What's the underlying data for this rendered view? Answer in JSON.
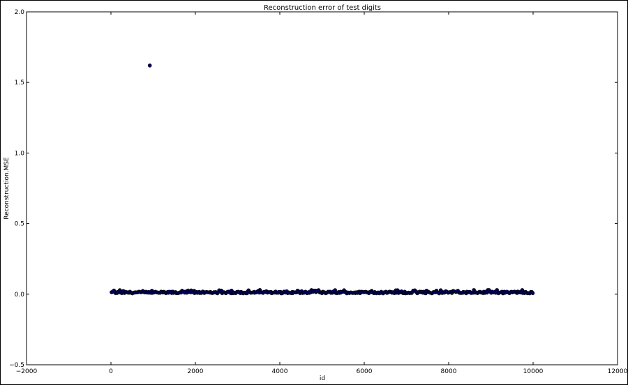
{
  "chart_data": {
    "type": "scatter",
    "title": "Reconstruction error of test digits",
    "xlabel": "id",
    "ylabel": "Reconstruction.MSE",
    "xlim": [
      -2000,
      12000
    ],
    "ylim": [
      -0.5,
      2.0
    ],
    "xticks": [
      -2000,
      0,
      2000,
      4000,
      6000,
      8000,
      10000,
      12000
    ],
    "xtick_labels": [
      "−2000",
      "0",
      "2000",
      "4000",
      "6000",
      "8000",
      "10000",
      "12000"
    ],
    "yticks": [
      -0.5,
      0.0,
      0.5,
      1.0,
      1.5,
      2.0
    ],
    "ytick_labels": [
      "−0.5",
      "0.0",
      "0.5",
      "1.0",
      "1.5",
      "2.0"
    ],
    "grid": false,
    "legend": "none",
    "marker_color": "#000066",
    "n_points": 10000,
    "baseline_range": [
      0.0,
      0.03
    ],
    "outliers": [
      {
        "x": 920,
        "y": 1.62
      }
    ]
  }
}
